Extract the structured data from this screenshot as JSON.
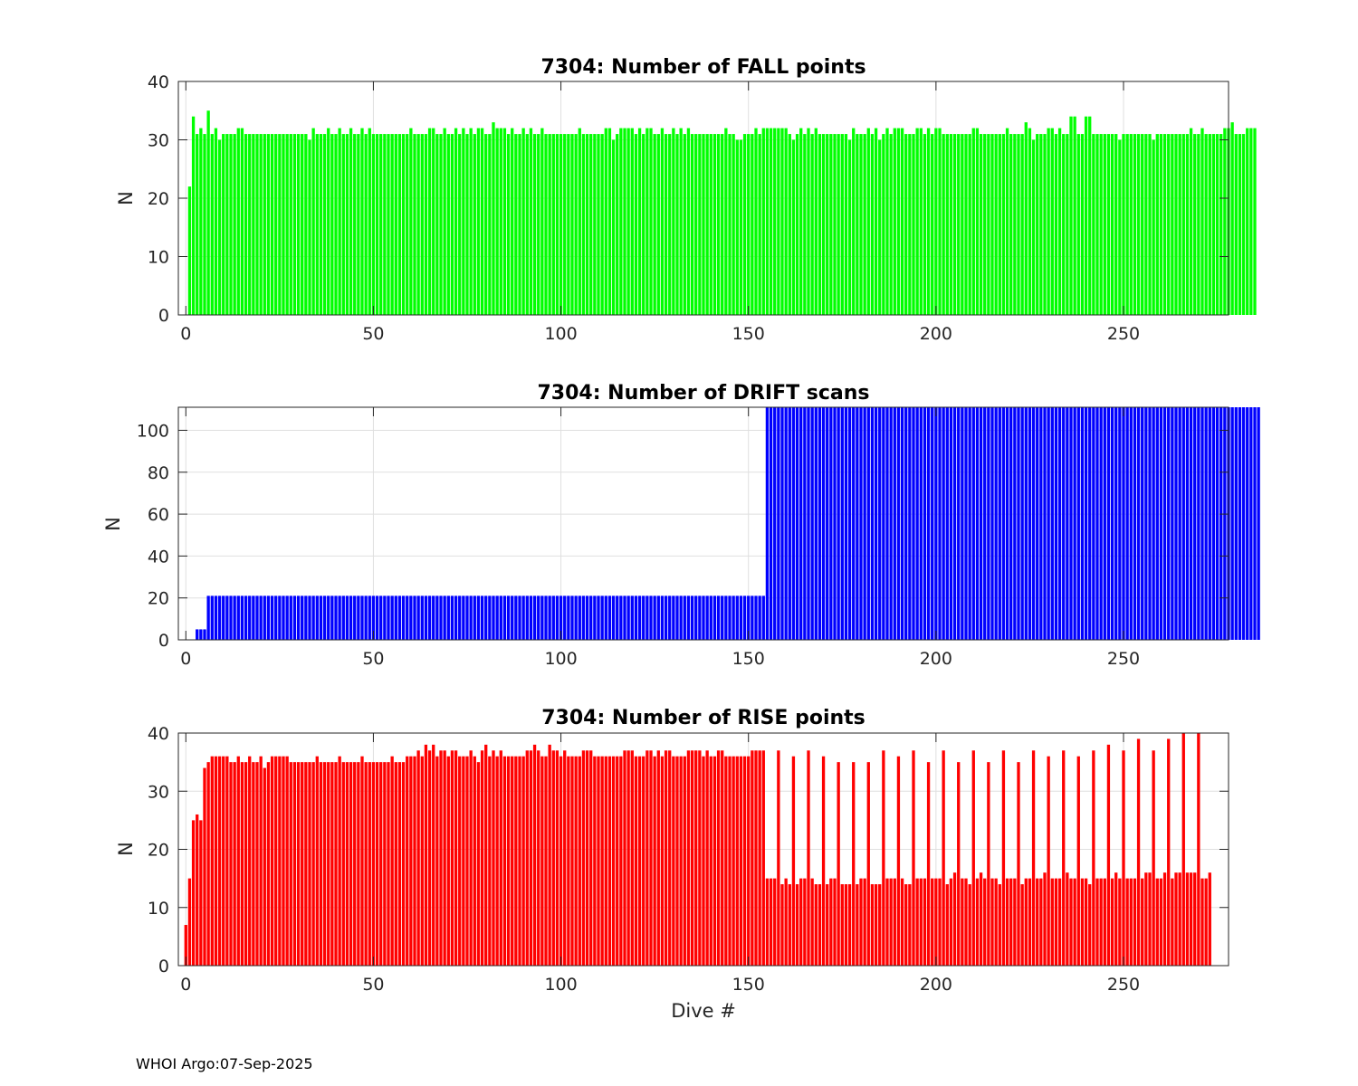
{
  "footer": "WHOI Argo:07-Sep-2025",
  "chart_data": [
    {
      "type": "bar",
      "title": "7304: Number of FALL points",
      "xlabel": "",
      "ylabel": "N",
      "color": "#00ff00",
      "xlim": [
        -2,
        278
      ],
      "ylim": [
        0,
        40
      ],
      "xticks": [
        0,
        50,
        100,
        150,
        200,
        250
      ],
      "yticks": [
        0,
        10,
        20,
        30,
        40
      ],
      "grid": true,
      "x_start": 1,
      "values": [
        22,
        34,
        31,
        32,
        31,
        35,
        31,
        32,
        30,
        31,
        31,
        31,
        31,
        32,
        32,
        31,
        31,
        31,
        31,
        31,
        31,
        31,
        31,
        31,
        31,
        31,
        31,
        31,
        31,
        31,
        31,
        31,
        30,
        32,
        31,
        31,
        31,
        32,
        31,
        31,
        32,
        31,
        31,
        32,
        31,
        31,
        32,
        31,
        32,
        31,
        31,
        31,
        31,
        31,
        31,
        31,
        31,
        31,
        31,
        32,
        31,
        31,
        31,
        31,
        32,
        32,
        31,
        31,
        32,
        31,
        31,
        32,
        31,
        32,
        31,
        32,
        31,
        32,
        32,
        31,
        31,
        33,
        32,
        32,
        32,
        31,
        32,
        31,
        31,
        32,
        31,
        32,
        31,
        31,
        32,
        31,
        31,
        31,
        31,
        31,
        31,
        31,
        31,
        31,
        32,
        31,
        31,
        31,
        31,
        31,
        31,
        32,
        32,
        30,
        31,
        32,
        32,
        32,
        32,
        31,
        32,
        31,
        32,
        32,
        31,
        31,
        32,
        31,
        31,
        32,
        31,
        32,
        31,
        32,
        31,
        31,
        31,
        31,
        31,
        31,
        31,
        31,
        31,
        32,
        31,
        31,
        30,
        30,
        31,
        31,
        31,
        32,
        31,
        32,
        32,
        32,
        32,
        32,
        32,
        32,
        31,
        30,
        31,
        32,
        31,
        32,
        31,
        32,
        31,
        31,
        31,
        31,
        31,
        31,
        31,
        31,
        30,
        32,
        31,
        31,
        31,
        32,
        31,
        32,
        30,
        31,
        32,
        31,
        32,
        32,
        32,
        31,
        31,
        31,
        32,
        32,
        31,
        32,
        31,
        32,
        32,
        31,
        31,
        31,
        31,
        31,
        31,
        31,
        31,
        32,
        32,
        31,
        31,
        31,
        31,
        31,
        31,
        31,
        32,
        31,
        31,
        31,
        31,
        33,
        32,
        30,
        31,
        31,
        31,
        32,
        32,
        31,
        32,
        31,
        31,
        34,
        34,
        31,
        31,
        34,
        34,
        31,
        31,
        31,
        31,
        31,
        31,
        31,
        30,
        31,
        31,
        31,
        31,
        31,
        31,
        31,
        31,
        30,
        31,
        31,
        31,
        31,
        31,
        31,
        31,
        31,
        31,
        32,
        31,
        31,
        32,
        31,
        31,
        31,
        31,
        31,
        32,
        32,
        33,
        31,
        31,
        31,
        32,
        32,
        32
      ]
    },
    {
      "type": "bar",
      "title": "7304: Number of DRIFT scans",
      "xlabel": "",
      "ylabel": "N",
      "color": "#0000ff",
      "xlim": [
        -2,
        278
      ],
      "ylim": [
        0,
        111
      ],
      "xticks": [
        0,
        50,
        100,
        150,
        200,
        250
      ],
      "yticks": [
        0,
        20,
        40,
        60,
        80,
        100
      ],
      "grid": true,
      "x_start": 1,
      "values": [
        0,
        0,
        5,
        5,
        5,
        21,
        21,
        21,
        21,
        21,
        21,
        21,
        21,
        21,
        21,
        21,
        21,
        21,
        21,
        21,
        21,
        21,
        21,
        21,
        21,
        21,
        21,
        21,
        21,
        21,
        21,
        21,
        21,
        21,
        21,
        21,
        21,
        21,
        21,
        21,
        21,
        21,
        21,
        21,
        21,
        21,
        21,
        21,
        21,
        21,
        21,
        21,
        21,
        21,
        21,
        21,
        21,
        21,
        21,
        21,
        21,
        21,
        21,
        21,
        21,
        21,
        21,
        21,
        21,
        21,
        21,
        21,
        21,
        21,
        21,
        21,
        21,
        21,
        21,
        21,
        21,
        21,
        21,
        21,
        21,
        21,
        21,
        21,
        21,
        21,
        21,
        21,
        21,
        21,
        21,
        21,
        21,
        21,
        21,
        21,
        21,
        21,
        21,
        21,
        21,
        21,
        21,
        21,
        21,
        21,
        21,
        21,
        21,
        21,
        21,
        21,
        21,
        21,
        21,
        21,
        21,
        21,
        21,
        21,
        21,
        21,
        21,
        21,
        21,
        21,
        21,
        21,
        21,
        21,
        21,
        21,
        21,
        21,
        21,
        21,
        21,
        21,
        21,
        21,
        21,
        21,
        21,
        21,
        21,
        21,
        21,
        21,
        21,
        21,
        111,
        111,
        111,
        111,
        111,
        111,
        111,
        111,
        111,
        111,
        111,
        111,
        111,
        111,
        111,
        111,
        111,
        111,
        111,
        111,
        111,
        111,
        111,
        111,
        111,
        111,
        111,
        111,
        111,
        111,
        111,
        111,
        111,
        111,
        111,
        111,
        111,
        111,
        111,
        111,
        111,
        111,
        111,
        111,
        111,
        111,
        111,
        111,
        111,
        111,
        111,
        111,
        111,
        111,
        111,
        111,
        111,
        111,
        111,
        111,
        111,
        111,
        111,
        111,
        111,
        111,
        111,
        111,
        111,
        111,
        111,
        111,
        111,
        111,
        111,
        111,
        111,
        111,
        111,
        111,
        111,
        111,
        111,
        111,
        111,
        111,
        111,
        111,
        111,
        111,
        111,
        111,
        111,
        111,
        111,
        111,
        111,
        111,
        111,
        111,
        111,
        111,
        111,
        111,
        111,
        111,
        111,
        111,
        111,
        111,
        111,
        111,
        111,
        111,
        111,
        111,
        111,
        111,
        111,
        111,
        111,
        111,
        111,
        111,
        111,
        111,
        111,
        111,
        111,
        111,
        111,
        111
      ]
    },
    {
      "type": "bar",
      "title": "7304: Number of RISE points",
      "xlabel": "Dive #",
      "ylabel": "N",
      "color": "#ff0000",
      "xlim": [
        -2,
        278
      ],
      "ylim": [
        0,
        40
      ],
      "xticks": [
        0,
        50,
        100,
        150,
        200,
        250
      ],
      "yticks": [
        0,
        10,
        20,
        30,
        40
      ],
      "grid": true,
      "x_start": 0,
      "values": [
        7,
        15,
        25,
        26,
        25,
        34,
        35,
        36,
        36,
        36,
        36,
        36,
        35,
        35,
        36,
        35,
        35,
        36,
        35,
        35,
        36,
        34,
        35,
        36,
        36,
        36,
        36,
        36,
        35,
        35,
        35,
        35,
        35,
        35,
        35,
        36,
        35,
        35,
        35,
        35,
        35,
        36,
        35,
        35,
        35,
        35,
        35,
        36,
        35,
        35,
        35,
        35,
        35,
        35,
        35,
        36,
        35,
        35,
        35,
        36,
        36,
        36,
        37,
        36,
        38,
        37,
        38,
        36,
        37,
        37,
        36,
        37,
        37,
        36,
        36,
        36,
        37,
        36,
        35,
        37,
        38,
        36,
        37,
        36,
        37,
        36,
        36,
        36,
        36,
        36,
        36,
        37,
        37,
        38,
        37,
        36,
        36,
        38,
        37,
        37,
        36,
        37,
        36,
        36,
        36,
        36,
        37,
        37,
        37,
        36,
        36,
        36,
        36,
        36,
        36,
        36,
        36,
        37,
        37,
        37,
        36,
        36,
        36,
        37,
        37,
        36,
        37,
        36,
        37,
        37,
        36,
        36,
        36,
        36,
        37,
        37,
        37,
        37,
        36,
        37,
        36,
        36,
        37,
        37,
        36,
        36,
        36,
        36,
        36,
        36,
        36,
        37,
        37,
        37,
        37,
        15,
        15,
        15,
        37,
        14,
        15,
        14,
        36,
        14,
        15,
        15,
        37,
        15,
        14,
        14,
        36,
        14,
        15,
        15,
        35,
        14,
        14,
        14,
        35,
        14,
        15,
        15,
        35,
        14,
        14,
        14,
        37,
        15,
        15,
        15,
        36,
        15,
        14,
        14,
        37,
        15,
        15,
        15,
        35,
        15,
        15,
        15,
        37,
        14,
        15,
        16,
        35,
        15,
        15,
        14,
        37,
        15,
        16,
        15,
        35,
        15,
        15,
        14,
        37,
        15,
        15,
        15,
        35,
        14,
        15,
        15,
        37,
        15,
        15,
        16,
        36,
        15,
        15,
        15,
        37,
        16,
        15,
        15,
        36,
        15,
        15,
        14,
        37,
        15,
        15,
        15,
        38,
        15,
        16,
        15,
        37,
        15,
        15,
        15,
        39,
        15,
        16,
        16,
        37,
        15,
        15,
        16,
        39,
        15,
        16,
        16,
        40,
        16,
        16,
        16,
        40,
        15,
        15,
        16
      ]
    }
  ]
}
